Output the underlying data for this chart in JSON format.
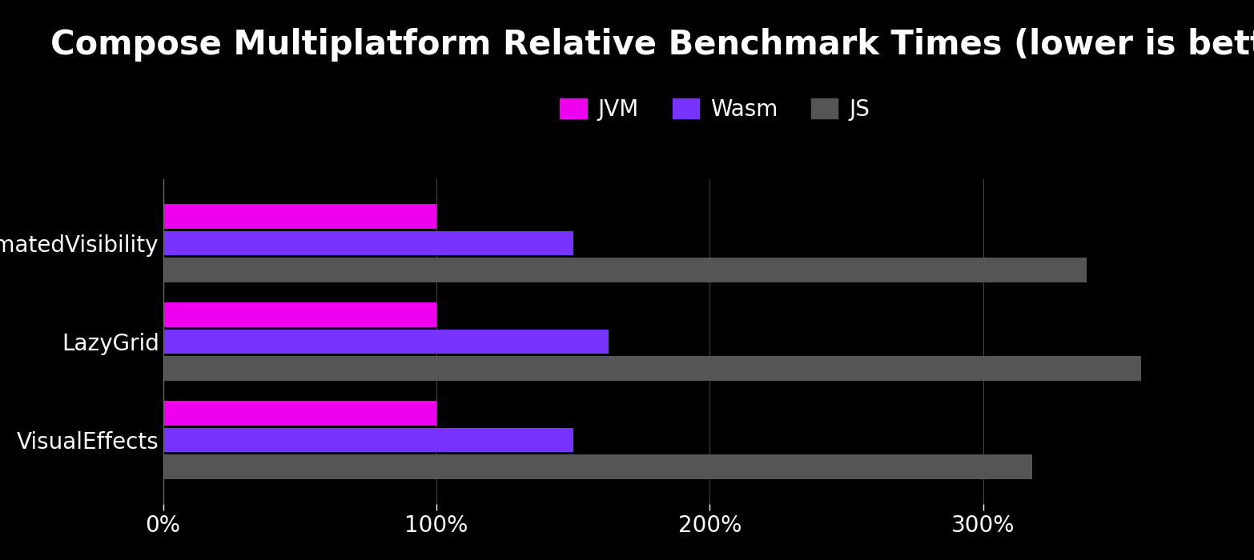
{
  "title": "Compose Multiplatform Relative Benchmark Times (lower is better)",
  "background_color": "#000000",
  "text_color": "#ffffff",
  "categories": [
    "AnimatedVisibility",
    "LazyGrid",
    "VisualEffects"
  ],
  "series": {
    "JVM": [
      100,
      100,
      100
    ],
    "Wasm": [
      150,
      163,
      150
    ],
    "JS": [
      338,
      358,
      318
    ]
  },
  "colors": {
    "JVM": "#ee00ee",
    "Wasm": "#7733ff",
    "JS": "#555555"
  },
  "xlim": [
    0,
    390
  ],
  "xticks": [
    0,
    100,
    200,
    300
  ],
  "xtick_labels": [
    "0%",
    "100%",
    "200%",
    "300%"
  ],
  "title_fontsize": 30,
  "tick_fontsize": 20,
  "label_fontsize": 20,
  "legend_fontsize": 20,
  "bar_height": 0.25,
  "bar_gap": 0.27
}
